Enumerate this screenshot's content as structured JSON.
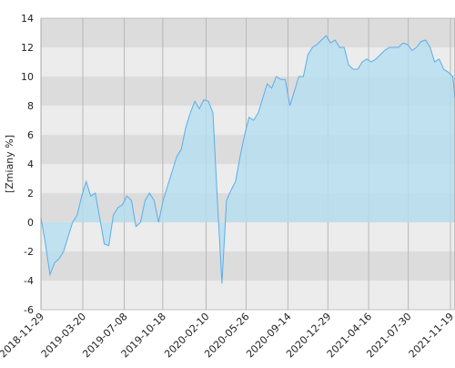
{
  "chart_data": {
    "type": "area",
    "y_label": "[Zmiany %]",
    "x": [
      "2018-11-29",
      "2018-12-11",
      "2018-12-23",
      "2019-01-04",
      "2019-01-16",
      "2019-01-28",
      "2019-02-09",
      "2019-02-21",
      "2019-03-05",
      "2019-03-17",
      "2019-03-29",
      "2019-04-10",
      "2019-04-22",
      "2019-05-04",
      "2019-05-16",
      "2019-05-28",
      "2019-06-09",
      "2019-06-21",
      "2019-07-03",
      "2019-07-15",
      "2019-07-27",
      "2019-08-08",
      "2019-08-20",
      "2019-09-01",
      "2019-09-13",
      "2019-09-25",
      "2019-10-07",
      "2019-10-19",
      "2019-10-31",
      "2019-11-12",
      "2019-11-24",
      "2019-12-06",
      "2019-12-18",
      "2019-12-30",
      "2020-01-11",
      "2020-01-23",
      "2020-02-04",
      "2020-02-16",
      "2020-02-28",
      "2020-03-11",
      "2020-03-23",
      "2020-04-04",
      "2020-04-16",
      "2020-04-28",
      "2020-05-10",
      "2020-05-22",
      "2020-06-03",
      "2020-06-15",
      "2020-06-27",
      "2020-07-09",
      "2020-07-21",
      "2020-08-02",
      "2020-08-14",
      "2020-08-26",
      "2020-09-07",
      "2020-09-19",
      "2020-10-01",
      "2020-10-13",
      "2020-10-25",
      "2020-11-06",
      "2020-11-18",
      "2020-11-30",
      "2020-12-12",
      "2020-12-24",
      "2021-01-05",
      "2021-01-17",
      "2021-01-29",
      "2021-02-10",
      "2021-02-22",
      "2021-03-06",
      "2021-03-18",
      "2021-03-30",
      "2021-04-11",
      "2021-04-23",
      "2021-05-05",
      "2021-05-17",
      "2021-05-29",
      "2021-06-10",
      "2021-06-22",
      "2021-07-04",
      "2021-07-16",
      "2021-07-28",
      "2021-08-09",
      "2021-08-21",
      "2021-09-02",
      "2021-09-14",
      "2021-09-26",
      "2021-10-08",
      "2021-10-20",
      "2021-11-01",
      "2021-11-13",
      "2021-11-25",
      "2021-12-01"
    ],
    "values": [
      0.3,
      -1.5,
      -3.6,
      -2.8,
      -2.5,
      -2.0,
      -1.0,
      0.0,
      0.5,
      1.8,
      2.8,
      1.8,
      2.0,
      0.3,
      -1.5,
      -1.6,
      0.5,
      1.0,
      1.2,
      1.8,
      1.5,
      -0.3,
      0.0,
      1.5,
      2.0,
      1.5,
      0.0,
      1.5,
      2.5,
      3.5,
      4.5,
      5.0,
      6.5,
      7.5,
      8.3,
      7.8,
      8.4,
      8.3,
      7.5,
      1.5,
      -4.2,
      1.5,
      2.2,
      2.8,
      4.5,
      6.0,
      7.2,
      7.0,
      7.5,
      8.5,
      9.5,
      9.2,
      10.0,
      9.8,
      9.8,
      8.0,
      9.0,
      10.0,
      10.0,
      11.5,
      12.0,
      12.2,
      12.5,
      12.8,
      12.3,
      12.5,
      12.0,
      12.0,
      10.8,
      10.5,
      10.5,
      11.0,
      11.2,
      11.0,
      11.2,
      11.5,
      11.8,
      12.0,
      12.0,
      12.0,
      12.3,
      12.2,
      11.8,
      12.0,
      12.4,
      12.5,
      12.0,
      11.0,
      11.2,
      10.5,
      10.3,
      10.0,
      8.5
    ],
    "color": "#5aaee8",
    "fill_color": "#b5dff0",
    "xlim": [
      "2018-11-29",
      "2021-12-01"
    ],
    "xticks": [
      "2018-11-29",
      "2019-03-20",
      "2019-07-08",
      "2019-10-18",
      "2020-02-10",
      "2020-05-26",
      "2020-09-14",
      "2020-12-29",
      "2021-04-16",
      "2021-07-30",
      "2021-11-19"
    ],
    "ylim": [
      -6,
      14
    ],
    "yticks": [
      -6,
      -4,
      -2,
      0,
      2,
      4,
      6,
      8,
      10,
      12,
      14
    ],
    "grid": true
  }
}
